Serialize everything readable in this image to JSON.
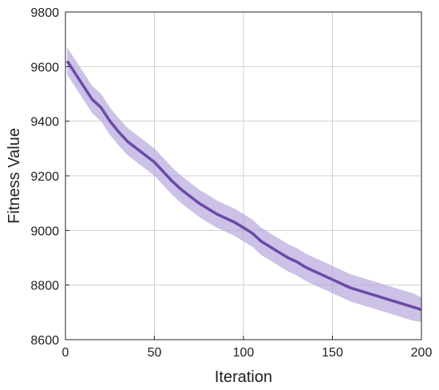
{
  "chart_data": {
    "type": "line",
    "xlabel": "Iteration",
    "ylabel": "Fitness Value",
    "xlim": [
      0,
      200
    ],
    "ylim": [
      8600,
      9800
    ],
    "xticks": [
      "0",
      "50",
      "100",
      "150",
      "200"
    ],
    "yticks": [
      "8600",
      "8800",
      "9000",
      "9200",
      "9400",
      "9600",
      "9800"
    ],
    "grid": true,
    "colors": {
      "line": "#6a4aa6",
      "band": "#b7a6dc"
    },
    "series": [
      {
        "x": [
          1,
          5,
          10,
          15,
          20,
          25,
          30,
          35,
          40,
          45,
          50,
          55,
          60,
          65,
          70,
          75,
          80,
          85,
          90,
          95,
          100,
          105,
          110,
          115,
          120,
          125,
          130,
          135,
          140,
          145,
          150,
          155,
          160,
          165,
          170,
          175,
          180,
          185,
          190,
          195,
          200
        ],
        "values": [
          9620,
          9580,
          9530,
          9480,
          9450,
          9400,
          9360,
          9325,
          9300,
          9275,
          9250,
          9215,
          9180,
          9150,
          9125,
          9100,
          9080,
          9060,
          9045,
          9030,
          9010,
          8990,
          8960,
          8940,
          8920,
          8900,
          8885,
          8865,
          8850,
          8835,
          8820,
          8805,
          8790,
          8780,
          8770,
          8760,
          8750,
          8740,
          8730,
          8720,
          8710
        ],
        "lower": [
          9570,
          9530,
          9480,
          9430,
          9400,
          9350,
          9310,
          9275,
          9250,
          9225,
          9200,
          9165,
          9130,
          9100,
          9075,
          9050,
          9030,
          9010,
          8995,
          8980,
          8960,
          8940,
          8910,
          8890,
          8870,
          8850,
          8835,
          8815,
          8800,
          8785,
          8770,
          8755,
          8740,
          8730,
          8720,
          8710,
          8700,
          8690,
          8680,
          8670,
          8665
        ],
        "upper": [
          9670,
          9630,
          9580,
          9530,
          9500,
          9450,
          9410,
          9375,
          9350,
          9325,
          9300,
          9265,
          9230,
          9200,
          9175,
          9150,
          9130,
          9110,
          9095,
          9080,
          9060,
          9040,
          9010,
          8990,
          8970,
          8950,
          8935,
          8915,
          8900,
          8885,
          8870,
          8855,
          8840,
          8830,
          8820,
          8810,
          8800,
          8790,
          8780,
          8770,
          8755
        ]
      }
    ]
  }
}
